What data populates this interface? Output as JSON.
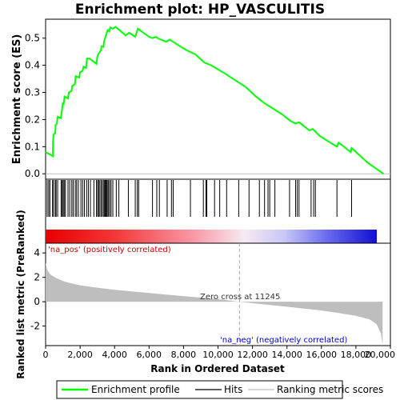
{
  "chart_data": {
    "type": "line",
    "title": "Enrichment plot: HP_VASCULITIS",
    "es_panel": {
      "ylabel": "Enrichment score (ES)",
      "ylim": [
        -0.02,
        0.57
      ],
      "yticks": [
        0.0,
        0.1,
        0.2,
        0.3,
        0.4,
        0.5
      ],
      "ytick_labels": [
        "0.0",
        "0.1",
        "0.2",
        "0.3",
        "0.4",
        "0.5"
      ],
      "series": [
        {
          "name": "Enrichment profile",
          "color": "#00ff00",
          "points": [
            [
              0,
              0.08
            ],
            [
              420,
              0.065
            ],
            [
              430,
              0.12
            ],
            [
              460,
              0.145
            ],
            [
              560,
              0.15
            ],
            [
              580,
              0.18
            ],
            [
              650,
              0.185
            ],
            [
              700,
              0.21
            ],
            [
              880,
              0.205
            ],
            [
              950,
              0.235
            ],
            [
              1000,
              0.26
            ],
            [
              1050,
              0.258
            ],
            [
              1100,
              0.285
            ],
            [
              1300,
              0.278
            ],
            [
              1350,
              0.3
            ],
            [
              1500,
              0.305
            ],
            [
              1550,
              0.325
            ],
            [
              1700,
              0.33
            ],
            [
              1750,
              0.36
            ],
            [
              1950,
              0.355
            ],
            [
              2000,
              0.375
            ],
            [
              2150,
              0.38
            ],
            [
              2200,
              0.395
            ],
            [
              2350,
              0.39
            ],
            [
              2400,
              0.425
            ],
            [
              2550,
              0.425
            ],
            [
              2950,
              0.405
            ],
            [
              3000,
              0.43
            ],
            [
              3050,
              0.44
            ],
            [
              3200,
              0.455
            ],
            [
              3250,
              0.47
            ],
            [
              3350,
              0.468
            ],
            [
              3400,
              0.49
            ],
            [
              3500,
              0.51
            ],
            [
              3600,
              0.53
            ],
            [
              3700,
              0.525
            ],
            [
              3750,
              0.54
            ],
            [
              3900,
              0.535
            ],
            [
              4050,
              0.542
            ],
            [
              4650,
              0.51
            ],
            [
              4850,
              0.52
            ],
            [
              5200,
              0.505
            ],
            [
              5350,
              0.535
            ],
            [
              6000,
              0.505
            ],
            [
              6200,
              0.5
            ],
            [
              6400,
              0.505
            ],
            [
              6550,
              0.498
            ],
            [
              7000,
              0.487
            ],
            [
              7200,
              0.495
            ],
            [
              7800,
              0.47
            ],
            [
              8200,
              0.455
            ],
            [
              8700,
              0.44
            ],
            [
              9200,
              0.41
            ],
            [
              9600,
              0.4
            ],
            [
              10400,
              0.37
            ],
            [
              11000,
              0.345
            ],
            [
              11600,
              0.32
            ],
            [
              12200,
              0.285
            ],
            [
              12700,
              0.26
            ],
            [
              13200,
              0.24
            ],
            [
              13700,
              0.22
            ],
            [
              14200,
              0.195
            ],
            [
              14500,
              0.185
            ],
            [
              14700,
              0.19
            ],
            [
              15300,
              0.16
            ],
            [
              15500,
              0.165
            ],
            [
              15900,
              0.14
            ],
            [
              16500,
              0.115
            ],
            [
              16900,
              0.1
            ],
            [
              17000,
              0.115
            ],
            [
              17700,
              0.08
            ],
            [
              17750,
              0.095
            ],
            [
              18700,
              0.04
            ],
            [
              19600,
              0.0
            ]
          ]
        }
      ]
    },
    "hits": [
      90,
      180,
      250,
      400,
      460,
      560,
      610,
      700,
      900,
      960,
      1020,
      1080,
      1150,
      1300,
      1400,
      1520,
      1600,
      1720,
      1800,
      1900,
      2050,
      2150,
      2250,
      2380,
      2480,
      2600,
      2800,
      2950,
      3020,
      3080,
      3150,
      3230,
      3300,
      3380,
      3430,
      3480,
      3530,
      3580,
      3650,
      3720,
      3800,
      3900,
      4100,
      4250,
      4800,
      5200,
      5320,
      5400,
      6200,
      6450,
      6600,
      7050,
      7300,
      7400,
      8400,
      9150,
      9300,
      9350,
      9800,
      10100,
      10500,
      11200,
      11800,
      12400,
      12700,
      12900,
      13000,
      13300,
      14150,
      14500,
      14600,
      14700,
      15400,
      15550,
      15650,
      16900,
      17750
    ],
    "metric_panel": {
      "ylabel": "Ranked list metric (PreRanked)",
      "ylim": [
        -3.6,
        4.8
      ],
      "yticks": [
        -2,
        0,
        2,
        4
      ],
      "ytick_labels": [
        "-2",
        "0",
        "2",
        "4"
      ],
      "color": "#bebebe",
      "profile": [
        [
          0,
          3.2
        ],
        [
          100,
          2.6
        ],
        [
          300,
          2.2
        ],
        [
          600,
          1.95
        ],
        [
          1000,
          1.7
        ],
        [
          1500,
          1.5
        ],
        [
          2000,
          1.35
        ],
        [
          3000,
          1.15
        ],
        [
          4000,
          0.98
        ],
        [
          5000,
          0.84
        ],
        [
          6000,
          0.71
        ],
        [
          7000,
          0.58
        ],
        [
          8000,
          0.46
        ],
        [
          9000,
          0.34
        ],
        [
          10000,
          0.21
        ],
        [
          11245,
          0.0
        ],
        [
          12000,
          -0.12
        ],
        [
          13000,
          -0.27
        ],
        [
          14000,
          -0.41
        ],
        [
          15000,
          -0.56
        ],
        [
          16000,
          -0.72
        ],
        [
          17000,
          -0.92
        ],
        [
          18000,
          -1.15
        ],
        [
          18800,
          -1.45
        ],
        [
          19200,
          -1.85
        ],
        [
          19450,
          -2.6
        ],
        [
          19550,
          -3.5
        ]
      ],
      "pos_label": "'na_pos' (positively correlated)",
      "neg_label": "'na_neg' (negatively correlated)",
      "zero_cross_label": "Zero cross at 11245",
      "zero_cross": 11245
    },
    "xaxis": {
      "label": "Rank in Ordered Dataset",
      "xlim": [
        0,
        20000
      ],
      "xticks": [
        0,
        2000,
        4000,
        6000,
        8000,
        10000,
        12000,
        14000,
        16000,
        18000,
        20000
      ],
      "xtick_labels": [
        "0",
        "2,000",
        "4,000",
        "6,000",
        "8,000",
        "10,000",
        "12,000",
        "14,000",
        "16,000",
        "18,000",
        "20,000"
      ],
      "n_genes": 19600
    },
    "legend": {
      "placement": "bottom",
      "items": [
        {
          "label": "Enrichment profile",
          "color": "#00ff00"
        },
        {
          "label": "Hits",
          "color": "#000000"
        },
        {
          "label": "Ranking metric scores",
          "color": "#bebebe"
        }
      ]
    }
  }
}
